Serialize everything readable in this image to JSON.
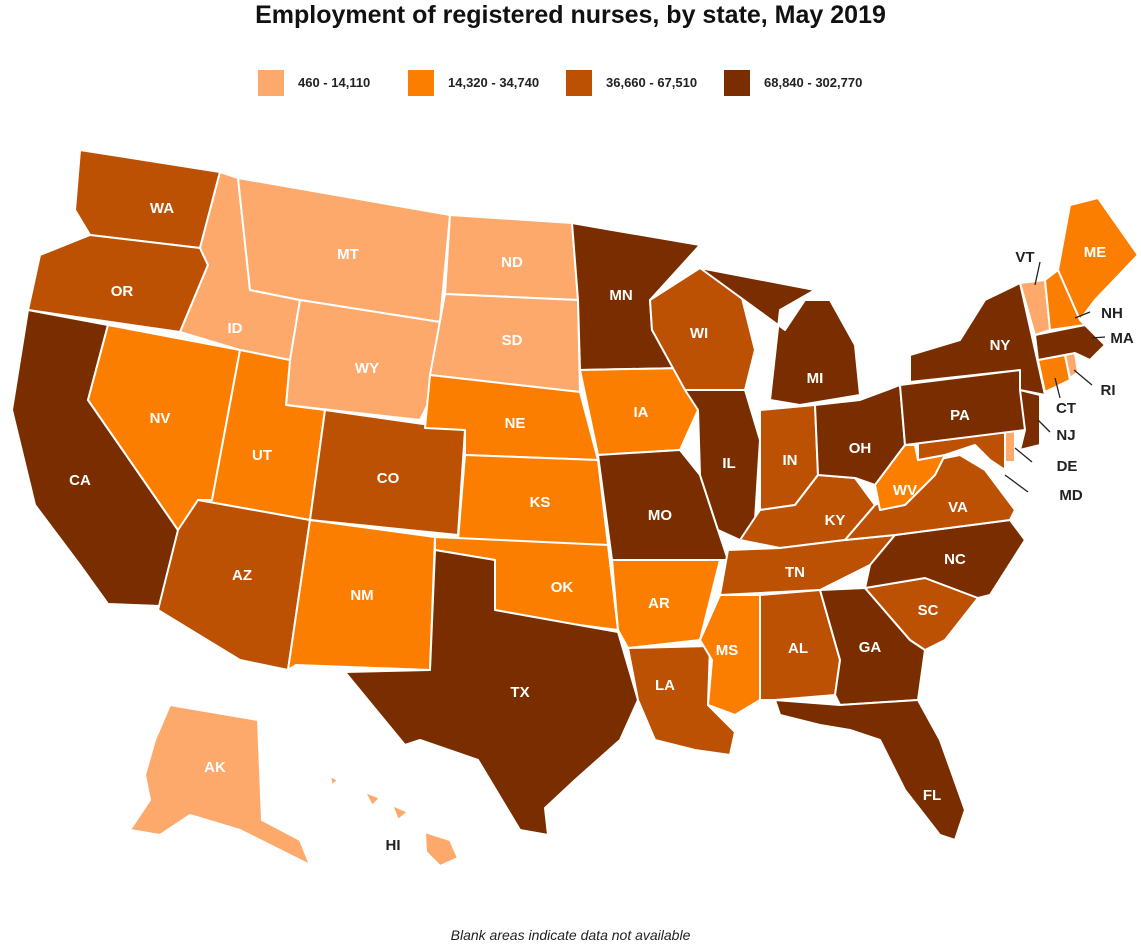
{
  "title": "Employment of registered nurses, by state, May 2019",
  "footnote": "Blank areas indicate data not available",
  "legend": [
    {
      "label": "460 - 14,110",
      "color": "#fda96b"
    },
    {
      "label": "14,320 - 34,740",
      "color": "#fc7e00"
    },
    {
      "label": "36,660 - 67,510",
      "color": "#bc5103"
    },
    {
      "label": "68,840 - 302,770",
      "color": "#7a2e00"
    }
  ],
  "states": {
    "WA": 2,
    "OR": 2,
    "CA": 3,
    "NV": 1,
    "ID": 0,
    "MT": 0,
    "WY": 0,
    "UT": 1,
    "AZ": 2,
    "CO": 2,
    "NM": 1,
    "ND": 0,
    "SD": 0,
    "NE": 1,
    "KS": 1,
    "OK": 1,
    "TX": 3,
    "MN": 3,
    "IA": 1,
    "MO": 3,
    "AR": 1,
    "LA": 2,
    "WI": 2,
    "IL": 3,
    "MS": 1,
    "MI": 3,
    "IN": 2,
    "KY": 2,
    "TN": 2,
    "AL": 2,
    "OH": 3,
    "GA": 3,
    "FL": 3,
    "SC": 2,
    "NC": 3,
    "VA": 2,
    "WV": 1,
    "PA": 3,
    "NY": 3,
    "ME": 1,
    "VT": 0,
    "NH": 1,
    "MA": 3,
    "RI": 0,
    "CT": 1,
    "NJ": 3,
    "DE": 0,
    "MD": 2,
    "AK": 0,
    "HI": 0
  }
}
